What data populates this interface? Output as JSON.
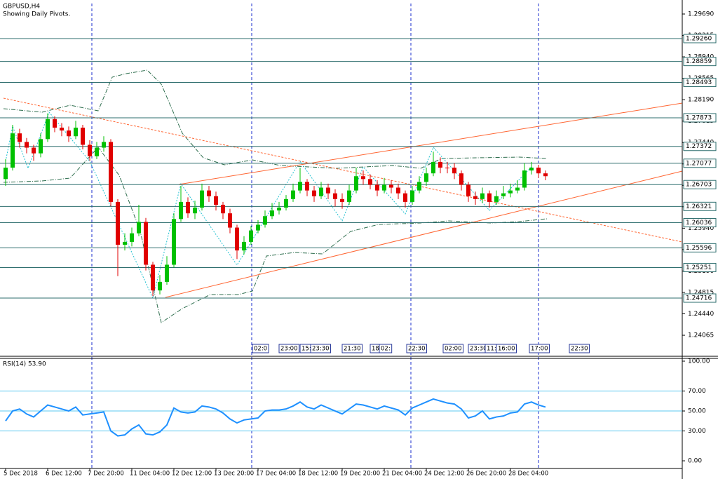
{
  "chart_data": [
    {
      "type": "candlestick",
      "title": "GBPUSD,H4",
      "subtitle": "Showing Daily Pivots.",
      "up_color": "#00c000",
      "down_color": "#e00000",
      "pivot_color": "#2e6e6e",
      "ylim": [
        1.23697,
        1.29874
      ],
      "yticks": [
        {
          "value": 1.2969,
          "label": "1.29690"
        },
        {
          "value": 1.29315,
          "label": "1.29315"
        },
        {
          "value": 1.2894,
          "label": "1.28940"
        },
        {
          "value": 1.28565,
          "label": "1.28565"
        },
        {
          "value": 1.2819,
          "label": "1.28190"
        },
        {
          "value": 1.27815,
          "label": "1.27815"
        },
        {
          "value": 1.2744,
          "label": "1.27440"
        },
        {
          "value": 1.27065,
          "label": "1.27065"
        },
        {
          "value": 1.2669,
          "label": "1.26690"
        },
        {
          "value": 1.26315,
          "label": "1.26315"
        },
        {
          "value": 1.2594,
          "label": "1.25940"
        },
        {
          "value": 1.25565,
          "label": "1.25565"
        },
        {
          "value": 1.2519,
          "label": "1.25190"
        },
        {
          "value": 1.24815,
          "label": "1.24815"
        },
        {
          "value": 1.2444,
          "label": "1.24440"
        },
        {
          "value": 1.24065,
          "label": "1.24065"
        }
      ],
      "pivots": [
        {
          "value": 1.2926,
          "label": "1.29260"
        },
        {
          "value": 1.28859,
          "label": "1.28859"
        },
        {
          "value": 1.28493,
          "label": "1.28493"
        },
        {
          "value": 1.27873,
          "label": "1.27873"
        },
        {
          "value": 1.27372,
          "label": "1.27372"
        },
        {
          "value": 1.27077,
          "label": "1.27077"
        },
        {
          "value": 1.26703,
          "label": "1.26703"
        },
        {
          "value": 1.26321,
          "label": "1.26321"
        },
        {
          "value": 1.26036,
          "label": "1.26036"
        },
        {
          "value": 1.25596,
          "label": "1.25596"
        },
        {
          "value": 1.25251,
          "label": "1.25251"
        },
        {
          "value": 1.24716,
          "label": "1.24716"
        }
      ],
      "x_labels": [
        "5 Dec 2018",
        "6 Dec 12:00",
        "7 Dec 20:00",
        "11 Dec 04:00",
        "12 Dec 12:00",
        "13 Dec 20:00",
        "17 Dec 04:00",
        "18 Dec 12:00",
        "19 Dec 20:00",
        "21 Dec 04:00",
        "24 Dec 12:00",
        "26 Dec 20:00",
        "28 Dec 04:00"
      ],
      "time_strip": [
        "02:0",
        "23:00",
        "15:",
        "23:30",
        "21:30",
        "18:",
        "02:",
        "22:30",
        "02:00",
        "23:30",
        "11:",
        "16:00",
        "17:00",
        "22:30"
      ],
      "candles": [
        [
          1.268,
          1.2715,
          1.2668,
          1.27
        ],
        [
          1.27,
          1.2775,
          1.2695,
          1.276
        ],
        [
          1.276,
          1.2768,
          1.2735,
          1.2745
        ],
        [
          1.2745,
          1.2752,
          1.2725,
          1.2735
        ],
        [
          1.2735,
          1.274,
          1.2712,
          1.2725
        ],
        [
          1.2725,
          1.276,
          1.2718,
          1.275
        ],
        [
          1.275,
          1.2795,
          1.2745,
          1.2785
        ],
        [
          1.2785,
          1.279,
          1.2762,
          1.277
        ],
        [
          1.277,
          1.2778,
          1.2755,
          1.2765
        ],
        [
          1.2765,
          1.2772,
          1.2745,
          1.2755
        ],
        [
          1.2755,
          1.2782,
          1.275,
          1.277
        ],
        [
          1.277,
          1.2775,
          1.2732,
          1.274
        ],
        [
          1.274,
          1.2748,
          1.2712,
          1.272
        ],
        [
          1.272,
          1.2745,
          1.2715,
          1.2735
        ],
        [
          1.2735,
          1.2755,
          1.2728,
          1.2745
        ],
        [
          1.2745,
          1.275,
          1.2632,
          1.264
        ],
        [
          1.264,
          1.2645,
          1.251,
          1.2565
        ],
        [
          1.2565,
          1.2585,
          1.2555,
          1.257
        ],
        [
          1.257,
          1.2595,
          1.2562,
          1.2585
        ],
        [
          1.2585,
          1.2635,
          1.258,
          1.2605
        ],
        [
          1.2605,
          1.2612,
          1.252,
          1.253
        ],
        [
          1.253,
          1.2535,
          1.2475,
          1.2485
        ],
        [
          1.2485,
          1.2512,
          1.2478,
          1.25
        ],
        [
          1.25,
          1.2545,
          1.2495,
          1.253
        ],
        [
          1.253,
          1.262,
          1.2525,
          1.261
        ],
        [
          1.261,
          1.2668,
          1.2605,
          1.264
        ],
        [
          1.264,
          1.2648,
          1.2612,
          1.262
        ],
        [
          1.262,
          1.2642,
          1.261,
          1.263
        ],
        [
          1.263,
          1.2672,
          1.2625,
          1.266
        ],
        [
          1.266,
          1.2668,
          1.264,
          1.265
        ],
        [
          1.265,
          1.2658,
          1.2625,
          1.2635
        ],
        [
          1.2635,
          1.264,
          1.261,
          1.262
        ],
        [
          1.262,
          1.2628,
          1.2585,
          1.2595
        ],
        [
          1.2595,
          1.26,
          1.254,
          1.2555
        ],
        [
          1.2555,
          1.258,
          1.2548,
          1.257
        ],
        [
          1.257,
          1.2598,
          1.2565,
          1.259
        ],
        [
          1.259,
          1.2608,
          1.2585,
          1.26
        ],
        [
          1.26,
          1.2625,
          1.2595,
          1.2615
        ],
        [
          1.2615,
          1.2638,
          1.261,
          1.2625
        ],
        [
          1.2625,
          1.264,
          1.2618,
          1.263
        ],
        [
          1.263,
          1.2652,
          1.2625,
          1.2645
        ],
        [
          1.2645,
          1.2672,
          1.264,
          1.266
        ],
        [
          1.266,
          1.27,
          1.2655,
          1.2675
        ],
        [
          1.2675,
          1.268,
          1.265,
          1.266
        ],
        [
          1.266,
          1.2668,
          1.264,
          1.265
        ],
        [
          1.265,
          1.2675,
          1.2645,
          1.2665
        ],
        [
          1.2665,
          1.2672,
          1.2645,
          1.2655
        ],
        [
          1.2655,
          1.2662,
          1.2632,
          1.2645
        ],
        [
          1.2645,
          1.2655,
          1.2628,
          1.264
        ],
        [
          1.264,
          1.267,
          1.2635,
          1.266
        ],
        [
          1.266,
          1.27,
          1.2655,
          1.2685
        ],
        [
          1.2685,
          1.2695,
          1.267,
          1.268
        ],
        [
          1.268,
          1.2688,
          1.2662,
          1.267
        ],
        [
          1.267,
          1.2678,
          1.265,
          1.266
        ],
        [
          1.266,
          1.2682,
          1.2655,
          1.267
        ],
        [
          1.267,
          1.2678,
          1.2655,
          1.2665
        ],
        [
          1.2665,
          1.2672,
          1.2645,
          1.2655
        ],
        [
          1.2655,
          1.266,
          1.263,
          1.264
        ],
        [
          1.264,
          1.2668,
          1.2635,
          1.266
        ],
        [
          1.266,
          1.2685,
          1.2655,
          1.2675
        ],
        [
          1.2675,
          1.27,
          1.2668,
          1.269
        ],
        [
          1.269,
          1.2728,
          1.2685,
          1.271
        ],
        [
          1.271,
          1.2718,
          1.269,
          1.27
        ],
        [
          1.27,
          1.271,
          1.269,
          1.27
        ],
        [
          1.27,
          1.2708,
          1.268,
          1.269
        ],
        [
          1.269,
          1.2695,
          1.266,
          1.267
        ],
        [
          1.267,
          1.2675,
          1.264,
          1.265
        ],
        [
          1.265,
          1.2658,
          1.2635,
          1.2645
        ],
        [
          1.2645,
          1.2665,
          1.2638,
          1.2655
        ],
        [
          1.2655,
          1.266,
          1.263,
          1.264
        ],
        [
          1.264,
          1.266,
          1.2635,
          1.265
        ],
        [
          1.265,
          1.2668,
          1.2645,
          1.2655
        ],
        [
          1.2655,
          1.2672,
          1.2648,
          1.266
        ],
        [
          1.266,
          1.2678,
          1.2655,
          1.2665
        ],
        [
          1.2665,
          1.2708,
          1.266,
          1.2695
        ],
        [
          1.2695,
          1.271,
          1.2688,
          1.27
        ],
        [
          1.27,
          1.2705,
          1.2682,
          1.269
        ],
        [
          1.269,
          1.2695,
          1.2678,
          1.2685
        ]
      ]
    },
    {
      "type": "line",
      "title": "RSI(14) 53.90",
      "color": "#1e90ff",
      "level_color": "#5bc8f0",
      "ylim": [
        -7.7,
        102.8
      ],
      "yticks": [
        {
          "value": 100,
          "label": "100.00"
        },
        {
          "value": 70,
          "label": "70.00"
        },
        {
          "value": 50,
          "label": "50.00"
        },
        {
          "value": 30,
          "label": "30.00"
        },
        {
          "value": 0,
          "label": "0.00"
        }
      ],
      "levels": [
        70,
        50,
        30
      ],
      "values": [
        40,
        50,
        52,
        47,
        44,
        50,
        56,
        54,
        52,
        50,
        54,
        46,
        47,
        48,
        49,
        30,
        25,
        26,
        32,
        36,
        27,
        26,
        29,
        36,
        53,
        49,
        48,
        49,
        55,
        54,
        52,
        48,
        42,
        38,
        41,
        42,
        43,
        50,
        51,
        51,
        52,
        55,
        59,
        54,
        52,
        56,
        53,
        50,
        47,
        52,
        57,
        56,
        54,
        52,
        55,
        53,
        51,
        46,
        53,
        56,
        59,
        62,
        60,
        58,
        57,
        52,
        43,
        45,
        50,
        42,
        44,
        45,
        48,
        49,
        57,
        59,
        56,
        53.9
      ]
    }
  ]
}
